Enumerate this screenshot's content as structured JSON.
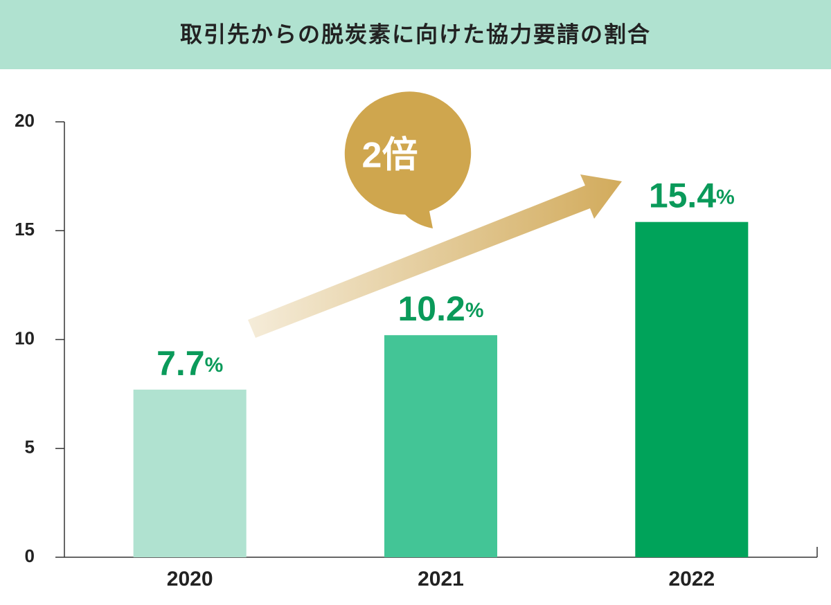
{
  "chart_data": {
    "type": "bar",
    "title": "取引先からの脱炭素に向けた協力要請の割合",
    "categories": [
      "2020",
      "2021",
      "2022"
    ],
    "values": [
      7.7,
      10.2,
      15.4
    ],
    "value_labels": [
      "7.7%",
      "10.2%",
      "15.4%"
    ],
    "colors": [
      "#b0e2d0",
      "#43c596",
      "#00a35a"
    ],
    "ylim": [
      0,
      20
    ],
    "yticks": [
      0,
      5,
      10,
      15,
      20
    ],
    "annotation": "2倍",
    "grid": false
  }
}
